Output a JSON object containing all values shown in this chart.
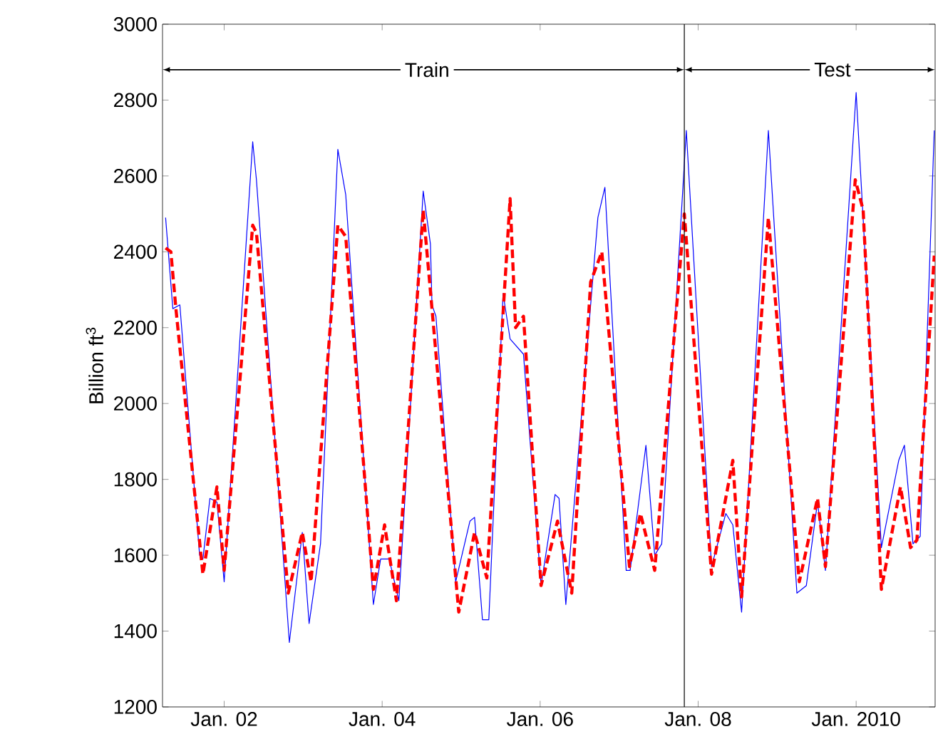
{
  "chart_data": {
    "type": "line",
    "ylabel": "Billion ft$^{3}$",
    "xlim": [
      "2001-03-20",
      "2011-01-01"
    ],
    "ylim": [
      1200,
      3000
    ],
    "xticks": [
      {
        "value": "2002-01-01",
        "label": "Jan. 02"
      },
      {
        "value": "2004-01-01",
        "label": "Jan. 04"
      },
      {
        "value": "2006-01-01",
        "label": "Jan. 06"
      },
      {
        "value": "2008-01-01",
        "label": "Jan. 08"
      },
      {
        "value": "2010-01-01",
        "label": "Jan. 2010"
      }
    ],
    "yticks": [
      1200,
      1400,
      1600,
      1800,
      2000,
      2200,
      2400,
      2600,
      2800,
      3000
    ],
    "grid": false,
    "marker": "none",
    "ref_lines": [
      {
        "axis": "x",
        "value": "2007-10-28",
        "color": "#000000"
      }
    ],
    "annotations": [
      {
        "text": "Train",
        "x": "2004-07-26",
        "y": 2880
      },
      {
        "text": "Test",
        "x": "2009-09-13",
        "y": 2880
      }
    ],
    "series": [
      {
        "color": "#0000ff",
        "line_style": "solid",
        "x": [
          "2001-04-04",
          "2001-05-07",
          "2001-06-09",
          "2001-09-09",
          "2001-09-24",
          "2001-10-26",
          "2001-11-28",
          "2002-01-01",
          "2002-05-11",
          "2002-05-28",
          "2002-10-28",
          "2002-12-27",
          "2003-01-28",
          "2003-03-20",
          "2003-06-09",
          "2003-07-15",
          "2003-11-21",
          "2003-12-24",
          "2004-02-03",
          "2004-03-17",
          "2004-07-08",
          "2004-08-11",
          "2004-08-18",
          "2004-09-06",
          "2004-12-06",
          "2005-02-11",
          "2005-03-02",
          "2005-04-08",
          "2005-05-07",
          "2005-07-12",
          "2005-08-14",
          "2005-10-15",
          "2006-01-05",
          "2006-03-09",
          "2006-03-27",
          "2006-04-28",
          "2006-09-24",
          "2006-10-26",
          "2007-02-03",
          "2007-02-21",
          "2007-05-03",
          "2007-06-13",
          "2007-07-15",
          "2007-11-07",
          "2008-03-02",
          "2008-05-07",
          "2008-06-09",
          "2008-07-19",
          "2008-11-21",
          "2009-04-01",
          "2009-05-14",
          "2009-07-05",
          "2009-08-11",
          "2010-01-01",
          "2010-04-26",
          "2010-07-15",
          "2010-08-11",
          "2010-09-20",
          "2010-10-23",
          "2010-12-27"
        ],
        "values": [
          2490,
          2250,
          2260,
          1600,
          1590,
          1750,
          1740,
          1530,
          2690,
          2590,
          1370,
          1660,
          1420,
          1630,
          2670,
          2550,
          1470,
          1590,
          1590,
          1480,
          2560,
          2420,
          2260,
          2230,
          1530,
          1690,
          1700,
          1430,
          1430,
          2290,
          2170,
          2130,
          1520,
          1760,
          1750,
          1470,
          2490,
          2570,
          1560,
          1560,
          1890,
          1600,
          1630,
          2720,
          1570,
          1710,
          1680,
          1450,
          2720,
          1500,
          1520,
          1740,
          1560,
          2820,
          1620,
          1850,
          1890,
          1630,
          1650,
          2720
        ]
      },
      {
        "color": "#ff0000",
        "line_style": "dashed",
        "x": [
          "2001-04-04",
          "2001-04-28",
          "2001-05-21",
          "2001-09-24",
          "2001-11-28",
          "2002-01-01",
          "2002-05-11",
          "2002-05-28",
          "2002-10-23",
          "2002-12-27",
          "2003-02-07",
          "2003-06-09",
          "2003-07-15",
          "2003-11-21",
          "2004-01-12",
          "2004-03-06",
          "2004-07-08",
          "2004-08-18",
          "2004-12-20",
          "2005-03-02",
          "2005-04-28",
          "2005-08-14",
          "2005-09-09",
          "2005-10-15",
          "2006-01-05",
          "2006-03-20",
          "2006-05-25",
          "2006-08-21",
          "2006-10-12",
          "2007-02-18",
          "2007-04-08",
          "2007-06-13",
          "2007-10-28",
          "2008-03-02",
          "2008-06-09",
          "2008-07-19",
          "2008-11-21",
          "2009-04-12",
          "2009-07-05",
          "2009-08-11",
          "2009-12-27",
          "2010-02-03",
          "2010-04-26",
          "2010-07-23",
          "2010-09-09",
          "2010-10-08",
          "2010-12-27"
        ],
        "values": [
          2410,
          2400,
          2250,
          1550,
          1780,
          1560,
          2470,
          2450,
          1500,
          1660,
          1530,
          2470,
          2440,
          1510,
          1680,
          1480,
          2510,
          2250,
          1450,
          1660,
          1540,
          2540,
          2200,
          2230,
          1520,
          1690,
          1500,
          2320,
          2400,
          1570,
          1710,
          1560,
          2500,
          1550,
          1850,
          1490,
          2490,
          1530,
          1750,
          1570,
          2590,
          2510,
          1510,
          1780,
          1620,
          1640,
          2390
        ]
      }
    ]
  }
}
